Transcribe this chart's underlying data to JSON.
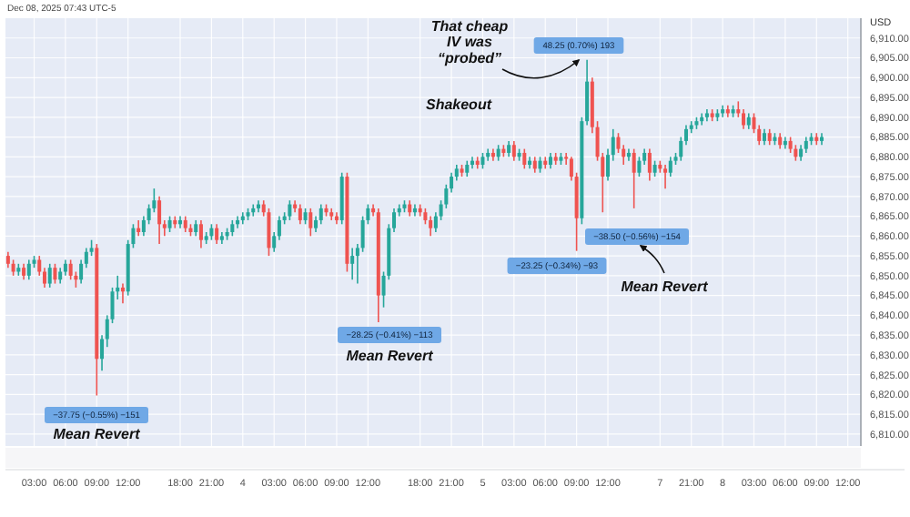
{
  "chart_data": {
    "type": "candlestick",
    "ylabel": "USD",
    "categories": [
      null,
      null,
      null,
      null,
      null,
      "03:00",
      null,
      null,
      null,
      null,
      null,
      "06:00",
      null,
      null,
      null,
      null,
      null,
      "09:00",
      null,
      null,
      null,
      null,
      null,
      "12:00",
      null,
      null,
      null,
      null,
      null,
      null,
      null,
      null,
      null,
      "18:00",
      null,
      null,
      null,
      null,
      null,
      "21:00",
      null,
      null,
      null,
      null,
      null,
      "4",
      null,
      null,
      null,
      null,
      null,
      "03:00",
      null,
      null,
      null,
      null,
      null,
      "06:00",
      null,
      null,
      null,
      null,
      null,
      "09:00",
      null,
      null,
      null,
      null,
      null,
      "12:00",
      null,
      null,
      null,
      null,
      null,
      null,
      null,
      null,
      null,
      "18:00",
      null,
      null,
      null,
      null,
      null,
      "21:00",
      null,
      null,
      null,
      null,
      null,
      "5",
      null,
      null,
      null,
      null,
      null,
      "03:00",
      null,
      null,
      null,
      null,
      null,
      "06:00",
      null,
      null,
      null,
      null,
      null,
      "09:00",
      null,
      null,
      null,
      null,
      null,
      "12:00",
      null,
      null,
      null,
      null,
      null,
      null,
      null,
      null,
      null,
      "7",
      null,
      null,
      null,
      null,
      null,
      "21:00",
      null,
      null,
      null,
      null,
      null,
      "8",
      null,
      null,
      null,
      null,
      null,
      "03:00",
      null,
      null,
      null,
      null,
      null,
      "06:00",
      null,
      null,
      null,
      null,
      null,
      "09:00",
      null,
      null,
      null,
      null,
      null,
      "12:00",
      null,
      null
    ],
    "ohlc": [
      [
        6855,
        6856,
        6852,
        6853
      ],
      [
        6853,
        6854,
        6850,
        6851
      ],
      [
        6851,
        6853,
        6850,
        6852
      ],
      [
        6852,
        6853,
        6849,
        6850
      ],
      [
        6850,
        6854,
        6849,
        6853
      ],
      [
        6853,
        6855,
        6852,
        6854
      ],
      [
        6854,
        6855,
        6850,
        6851
      ],
      [
        6851,
        6852,
        6847,
        6848
      ],
      [
        6848,
        6853,
        6847,
        6852
      ],
      [
        6852,
        6853,
        6848,
        6849
      ],
      [
        6849,
        6852,
        6848,
        6851
      ],
      [
        6851,
        6854,
        6850,
        6853
      ],
      [
        6853,
        6854,
        6849,
        6850
      ],
      [
        6850,
        6851,
        6847,
        6849
      ],
      [
        6849,
        6854,
        6848,
        6853
      ],
      [
        6853,
        6857,
        6852,
        6856
      ],
      [
        6856,
        6859,
        6855,
        6857
      ],
      [
        6857,
        6858,
        6819.75,
        6829
      ],
      [
        6829,
        6835,
        6826,
        6834
      ],
      [
        6834,
        6840,
        6832,
        6839
      ],
      [
        6839,
        6847,
        6838,
        6846
      ],
      [
        6846,
        6850,
        6844,
        6847
      ],
      [
        6847,
        6848,
        6843,
        6846
      ],
      [
        6846,
        6859,
        6845,
        6858
      ],
      [
        6858,
        6863,
        6857,
        6862
      ],
      [
        6862,
        6864,
        6860,
        6861
      ],
      [
        6861,
        6865,
        6860,
        6864
      ],
      [
        6864,
        6868,
        6863,
        6867
      ],
      [
        6867,
        6872,
        6866,
        6869
      ],
      [
        6869,
        6870,
        6858,
        6863
      ],
      [
        6863,
        6864,
        6860,
        6862
      ],
      [
        6862,
        6865,
        6861,
        6864
      ],
      [
        6864,
        6865,
        6862,
        6863
      ],
      [
        6863,
        6865,
        6862,
        6864
      ],
      [
        6864,
        6865,
        6861,
        6862
      ],
      [
        6862,
        6863,
        6860,
        6861
      ],
      [
        6861,
        6864,
        6860,
        6863
      ],
      [
        6863,
        6864,
        6857,
        6859
      ],
      [
        6859,
        6861,
        6858,
        6860
      ],
      [
        6860,
        6863,
        6859,
        6862
      ],
      [
        6862,
        6863,
        6858,
        6859
      ],
      [
        6859,
        6861,
        6858,
        6860
      ],
      [
        6860,
        6862,
        6859,
        6861
      ],
      [
        6861,
        6864,
        6860,
        6863
      ],
      [
        6863,
        6865,
        6862,
        6864
      ],
      [
        6864,
        6866,
        6863,
        6865
      ],
      [
        6865,
        6867,
        6864,
        6866
      ],
      [
        6866,
        6868,
        6865,
        6867
      ],
      [
        6867,
        6869,
        6866,
        6868
      ],
      [
        6868,
        6869,
        6865,
        6866
      ],
      [
        6866,
        6867,
        6855,
        6857
      ],
      [
        6857,
        6861,
        6856,
        6860
      ],
      [
        6860,
        6865,
        6859,
        6864
      ],
      [
        6864,
        6866,
        6863,
        6865
      ],
      [
        6865,
        6869,
        6864,
        6868
      ],
      [
        6868,
        6869,
        6866,
        6867
      ],
      [
        6867,
        6868,
        6863,
        6864
      ],
      [
        6864,
        6867,
        6863,
        6866
      ],
      [
        6866,
        6867,
        6860,
        6862
      ],
      [
        6862,
        6865,
        6861,
        6864
      ],
      [
        6864,
        6868,
        6863,
        6867
      ],
      [
        6867,
        6868,
        6865,
        6866
      ],
      [
        6866,
        6867,
        6864,
        6865
      ],
      [
        6865,
        6866,
        6863,
        6864
      ],
      [
        6864,
        6876,
        6863,
        6875
      ],
      [
        6875,
        6876,
        6851,
        6853
      ],
      [
        6853,
        6857,
        6849,
        6855
      ],
      [
        6855,
        6858,
        6848,
        6857
      ],
      [
        6857,
        6865,
        6856,
        6864
      ],
      [
        6864,
        6868,
        6863,
        6867
      ],
      [
        6867,
        6868,
        6865,
        6866
      ],
      [
        6866,
        6867,
        6838.25,
        6845
      ],
      [
        6845,
        6851,
        6842,
        6850
      ],
      [
        6850,
        6863,
        6849,
        6862
      ],
      [
        6862,
        6867,
        6861,
        6866
      ],
      [
        6866,
        6868,
        6865,
        6867
      ],
      [
        6867,
        6869,
        6866,
        6868
      ],
      [
        6868,
        6869,
        6865,
        6866
      ],
      [
        6866,
        6868,
        6865,
        6867
      ],
      [
        6867,
        6868,
        6865,
        6866
      ],
      [
        6866,
        6867,
        6863,
        6864
      ],
      [
        6864,
        6865,
        6860,
        6862
      ],
      [
        6862,
        6866,
        6861,
        6865
      ],
      [
        6865,
        6869,
        6864,
        6868
      ],
      [
        6868,
        6873,
        6867,
        6872
      ],
      [
        6872,
        6876,
        6871,
        6875
      ],
      [
        6875,
        6878,
        6874,
        6877
      ],
      [
        6877,
        6878,
        6875,
        6876
      ],
      [
        6876,
        6879,
        6875,
        6878
      ],
      [
        6878,
        6880,
        6877,
        6879
      ],
      [
        6879,
        6880,
        6877,
        6878
      ],
      [
        6878,
        6881,
        6877,
        6880
      ],
      [
        6880,
        6882,
        6879,
        6881
      ],
      [
        6881,
        6882,
        6879,
        6880
      ],
      [
        6880,
        6883,
        6879,
        6882
      ],
      [
        6882,
        6883,
        6880,
        6881
      ],
      [
        6881,
        6884,
        6880,
        6883
      ],
      [
        6883,
        6884,
        6879,
        6880
      ],
      [
        6880,
        6882,
        6879,
        6881
      ],
      [
        6881,
        6882,
        6877,
        6878
      ],
      [
        6878,
        6880,
        6877,
        6879
      ],
      [
        6879,
        6880,
        6876,
        6877
      ],
      [
        6877,
        6880,
        6876,
        6879
      ],
      [
        6879,
        6880,
        6877,
        6878
      ],
      [
        6878,
        6881,
        6877,
        6880
      ],
      [
        6880,
        6881,
        6878,
        6879
      ],
      [
        6879,
        6881,
        6878,
        6880
      ],
      [
        6880,
        6881,
        6878,
        6879.5
      ],
      [
        6879.5,
        6880,
        6874,
        6875
      ],
      [
        6875,
        6876,
        6856.25,
        6864.5
      ],
      [
        6864.5,
        6890,
        6863,
        6889
      ],
      [
        6889,
        6904.5,
        6888,
        6899
      ],
      [
        6899,
        6900,
        6886,
        6887.5
      ],
      [
        6887.5,
        6889,
        6879,
        6880
      ],
      [
        6880,
        6881,
        6866,
        6875
      ],
      [
        6875,
        6882,
        6874,
        6880.5
      ],
      [
        6880.5,
        6887,
        6879,
        6885
      ],
      [
        6885,
        6886,
        6881,
        6882
      ],
      [
        6882,
        6883,
        6878,
        6880
      ],
      [
        6880,
        6882,
        6879,
        6881
      ],
      [
        6881,
        6882,
        6867,
        6876
      ],
      [
        6876,
        6880,
        6875,
        6879
      ],
      [
        6879,
        6882,
        6878,
        6881
      ],
      [
        6881,
        6882,
        6874,
        6876
      ],
      [
        6876,
        6879,
        6875,
        6878
      ],
      [
        6878,
        6879,
        6876,
        6877
      ],
      [
        6877,
        6878,
        6872,
        6876
      ],
      [
        6876,
        6880,
        6875,
        6879
      ],
      [
        6879,
        6881,
        6878,
        6880
      ],
      [
        6880,
        6885,
        6879,
        6884
      ],
      [
        6884,
        6888,
        6883,
        6887
      ],
      [
        6887,
        6889,
        6886,
        6888
      ],
      [
        6888,
        6890,
        6887,
        6889
      ],
      [
        6889,
        6891,
        6888,
        6890
      ],
      [
        6890,
        6892,
        6889,
        6891
      ],
      [
        6891,
        6892,
        6889,
        6890
      ],
      [
        6890,
        6892,
        6889,
        6891
      ],
      [
        6891,
        6893,
        6890,
        6892
      ],
      [
        6892,
        6893,
        6890,
        6891
      ],
      [
        6891,
        6893,
        6890,
        6892
      ],
      [
        6892,
        6894,
        6890,
        6891
      ],
      [
        6891,
        6892,
        6887,
        6888
      ],
      [
        6888,
        6891,
        6887,
        6890
      ],
      [
        6890,
        6891,
        6886,
        6887
      ],
      [
        6887,
        6888,
        6883,
        6884
      ],
      [
        6884,
        6887,
        6883,
        6886
      ],
      [
        6886,
        6887,
        6883,
        6884
      ],
      [
        6884,
        6886,
        6883,
        6885
      ],
      [
        6885,
        6886,
        6882,
        6883
      ],
      [
        6883,
        6885,
        6882,
        6884
      ],
      [
        6884,
        6885,
        6881,
        6882
      ],
      [
        6882,
        6883,
        6879,
        6880
      ],
      [
        6880,
        6883,
        6879,
        6882
      ],
      [
        6882,
        6885,
        6881,
        6884
      ],
      [
        6884,
        6886,
        6883,
        6885
      ],
      [
        6885,
        6886,
        6883,
        6884
      ],
      [
        6884,
        6886,
        6883,
        6885
      ],
      null,
      null,
      null,
      null,
      null,
      null,
      null
    ],
    "ylim": [
      6807,
      6915
    ],
    "yticks": [
      {
        "value": 6810,
        "label": "6,810.00"
      },
      {
        "value": 6815,
        "label": "6,815.00"
      },
      {
        "value": 6820,
        "label": "6,820.00"
      },
      {
        "value": 6825,
        "label": "6,825.00"
      },
      {
        "value": 6830,
        "label": "6,830.00"
      },
      {
        "value": 6835,
        "label": "6,835.00"
      },
      {
        "value": 6840,
        "label": "6,840.00"
      },
      {
        "value": 6845,
        "label": "6,845.00"
      },
      {
        "value": 6850,
        "label": "6,850.00"
      },
      {
        "value": 6855,
        "label": "6,855.00"
      },
      {
        "value": 6860,
        "label": "6,860.00"
      },
      {
        "value": 6865,
        "label": "6,865.00"
      },
      {
        "value": 6870,
        "label": "6,870.00"
      },
      {
        "value": 6875,
        "label": "6,875.00"
      },
      {
        "value": 6880,
        "label": "6,880.00"
      },
      {
        "value": 6885,
        "label": "6,885.00"
      },
      {
        "value": 6890,
        "label": "6,890.00"
      },
      {
        "value": 6895,
        "label": "6,895.00"
      },
      {
        "value": 6900,
        "label": "6,900.00"
      },
      {
        "value": 6905,
        "label": "6,905.00"
      },
      {
        "value": 6910,
        "label": "6,910.00"
      }
    ],
    "grid": true,
    "annotations": [
      "Dec 08, 2025 07:43 UTC-5",
      "−37.75 (−0.55%) −151",
      "Mean Revert",
      "−28.25 (−0.41%) −113",
      "Mean Revert",
      "48.25 (0.70%) 193",
      "That cheap\nIV was\n“probed”",
      "Shakeout",
      "−23.25 (−0.34%) −93",
      "−38.50 (−0.56%) −154",
      "Mean Revert"
    ]
  }
}
